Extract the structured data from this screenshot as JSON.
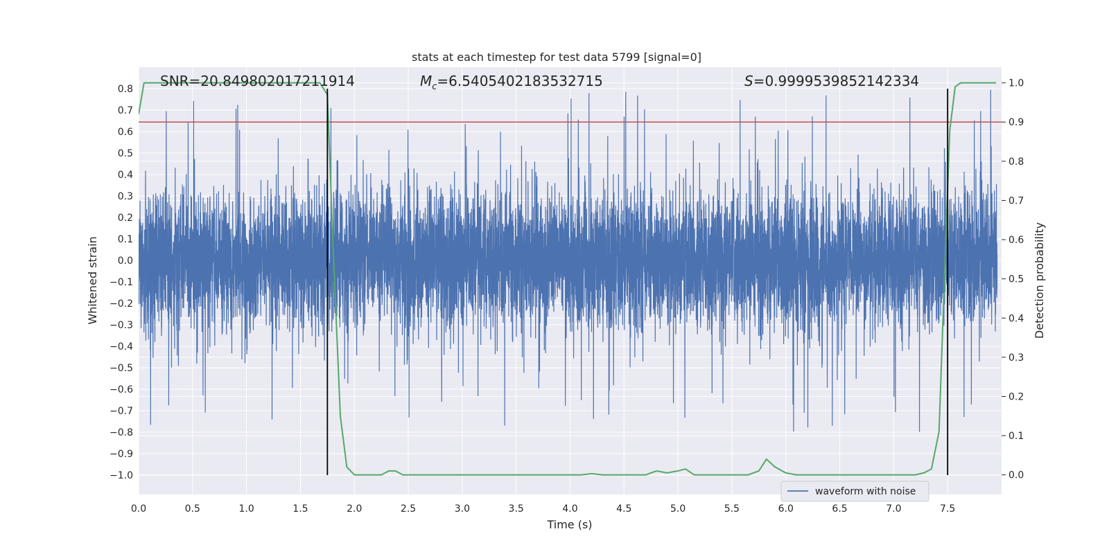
{
  "chart_data": {
    "type": "line",
    "title": "stats at each timestep for test data 5799 [signal=0]",
    "xlabel": "Time (s)",
    "ylabel": "Whitened strain",
    "y2label": "Detection probability",
    "xlim": [
      0.0,
      8.0
    ],
    "ylim": [
      -1.09,
      0.9
    ],
    "y2lim": [
      -0.05,
      1.04
    ],
    "x_ticks": [
      "0.0",
      "0.5",
      "1.0",
      "1.5",
      "2.0",
      "2.5",
      "3.0",
      "3.5",
      "4.0",
      "4.5",
      "5.0",
      "5.5",
      "6.0",
      "6.5",
      "7.0",
      "7.5"
    ],
    "y_ticks": [
      "0.8",
      "0.7",
      "0.6",
      "0.5",
      "0.4",
      "0.3",
      "0.2",
      "0.1",
      "0.0",
      "−0.1",
      "−0.2",
      "−0.3",
      "−0.4",
      "−0.5",
      "−0.6",
      "−0.7",
      "−0.8",
      "−0.9",
      "−1.0"
    ],
    "y2_ticks": [
      "1.0",
      "0.9",
      "0.8",
      "0.7",
      "0.6",
      "0.5",
      "0.4",
      "0.3",
      "0.2",
      "0.1",
      "0.0"
    ],
    "annotations": {
      "snr": "SNR=20.849802017211914",
      "mc_symbol": "M",
      "mc_subscript": "c",
      "mc_value": "=6.5405402183532715",
      "s_symbol": "S",
      "s_value": "=0.9999539852142334"
    },
    "legend": {
      "entries": [
        "waveform with noise"
      ],
      "placement": "lower-right"
    },
    "grid": true,
    "threshold_probability": 0.9,
    "vertical_markers": [
      1.75,
      7.5
    ],
    "waveform": {
      "name": "waveform with noise",
      "dt": 0.001,
      "seed": 5799,
      "core_amplitude": 0.38,
      "spike_max": 0.8,
      "spike_min": -1.0
    },
    "probability_series": {
      "x": [
        0.0,
        0.05,
        0.1,
        0.2,
        0.4,
        0.6,
        0.8,
        1.0,
        1.2,
        1.4,
        1.6,
        1.68,
        1.75,
        1.8,
        1.87,
        1.93,
        2.0,
        2.1,
        2.2,
        2.25,
        2.32,
        2.38,
        2.45,
        2.5,
        2.6,
        2.7,
        2.8,
        3.0,
        3.2,
        3.4,
        3.6,
        3.8,
        4.0,
        4.1,
        4.2,
        4.3,
        4.4,
        4.6,
        4.7,
        4.8,
        4.9,
        5.0,
        5.07,
        5.15,
        5.3,
        5.5,
        5.65,
        5.75,
        5.82,
        5.9,
        6.0,
        6.1,
        6.3,
        6.6,
        7.0,
        7.2,
        7.28,
        7.35,
        7.42,
        7.47,
        7.52,
        7.57,
        7.62,
        7.7,
        7.8,
        7.95
      ],
      "y": [
        0.92,
        1.0,
        1.0,
        1.0,
        1.0,
        1.0,
        1.0,
        1.0,
        1.0,
        1.0,
        1.0,
        1.0,
        0.97,
        0.6,
        0.15,
        0.02,
        0.0,
        0.0,
        0.0,
        0.0,
        0.01,
        0.01,
        0.0,
        0.0,
        0.0,
        0.0,
        0.0,
        0.0,
        0.0,
        0.0,
        0.0,
        0.0,
        0.0,
        0.0,
        0.003,
        0.0,
        0.0,
        0.0,
        0.0,
        0.01,
        0.005,
        0.01,
        0.015,
        0.0,
        0.0,
        0.0,
        0.0,
        0.01,
        0.04,
        0.02,
        0.005,
        0.0,
        0.0,
        0.0,
        0.0,
        0.0,
        0.005,
        0.015,
        0.11,
        0.5,
        0.88,
        0.99,
        1.0,
        1.0,
        1.0,
        1.0
      ]
    },
    "colors": {
      "background": "#eaeaf2",
      "grid": "#ffffff",
      "waveform": "#4c72b0",
      "probability": "#55a868",
      "threshold": "#c44e52",
      "marker": "#000000"
    }
  }
}
